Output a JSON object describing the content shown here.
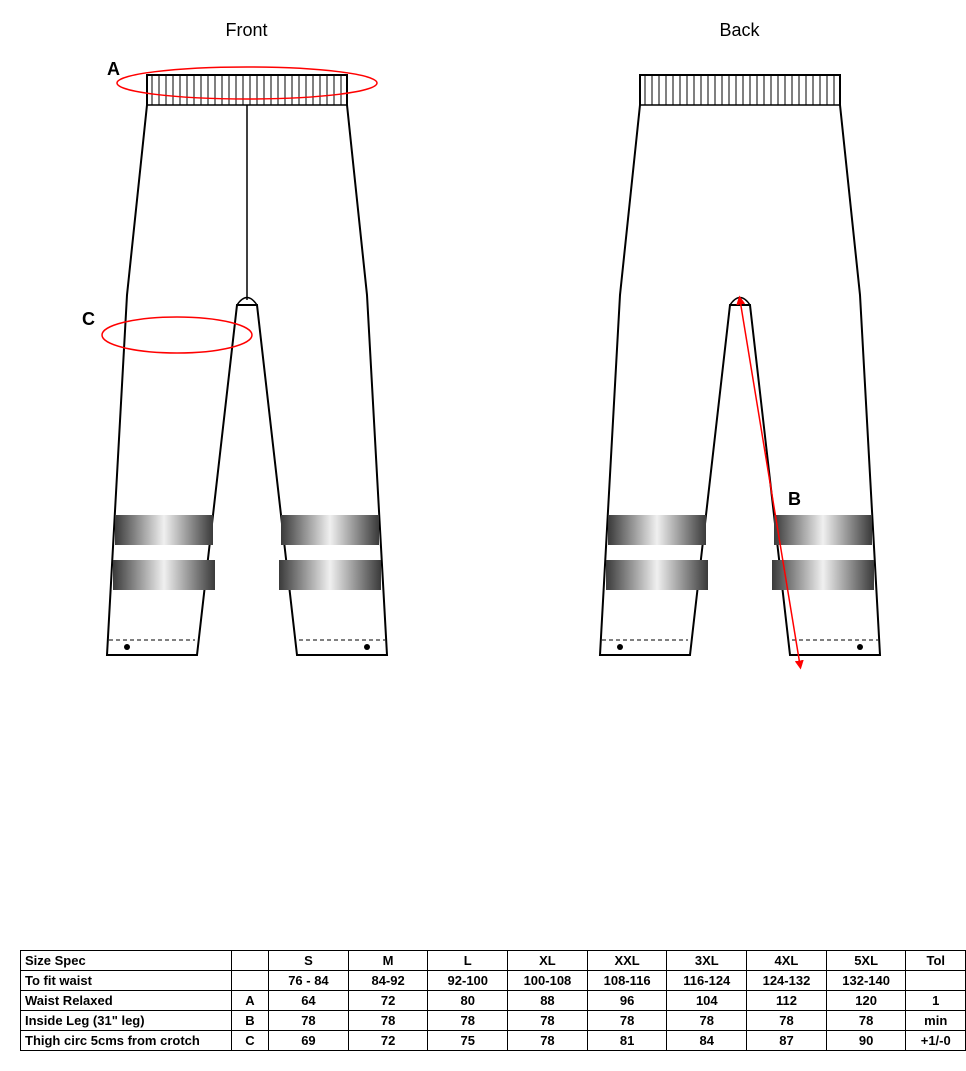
{
  "diagram": {
    "front_label": "Front",
    "back_label": "Back",
    "measure_A": "A",
    "measure_B": "B",
    "measure_C": "C",
    "stroke": "#000000",
    "arrow_color": "#ff0000",
    "band_gradient_edge": "#3a3a3a",
    "band_gradient_mid": "#f0f0f0"
  },
  "table": {
    "header": {
      "spec": "Size Spec",
      "ref": "",
      "sizes": [
        "S",
        "M",
        "L",
        "XL",
        "XXL",
        "3XL",
        "4XL",
        "5XL"
      ],
      "tol": "Tol"
    },
    "rows": [
      {
        "label": "To fit waist",
        "ref": "",
        "vals": [
          "76 - 84",
          "84-92",
          "92-100",
          "100-108",
          "108-116",
          "116-124",
          "124-132",
          "132-140"
        ],
        "tol": ""
      },
      {
        "label": "Waist Relaxed",
        "ref": "A",
        "vals": [
          "64",
          "72",
          "80",
          "88",
          "96",
          "104",
          "112",
          "120"
        ],
        "tol": "1"
      },
      {
        "label": "Inside Leg (31\" leg)",
        "ref": "B",
        "vals": [
          "78",
          "78",
          "78",
          "78",
          "78",
          "78",
          "78",
          "78"
        ],
        "tol": "min"
      },
      {
        "label": "Thigh circ 5cms from crotch",
        "ref": "C",
        "vals": [
          "69",
          "72",
          "75",
          "78",
          "81",
          "84",
          "87",
          "90"
        ],
        "tol": "+1/-0"
      }
    ]
  }
}
